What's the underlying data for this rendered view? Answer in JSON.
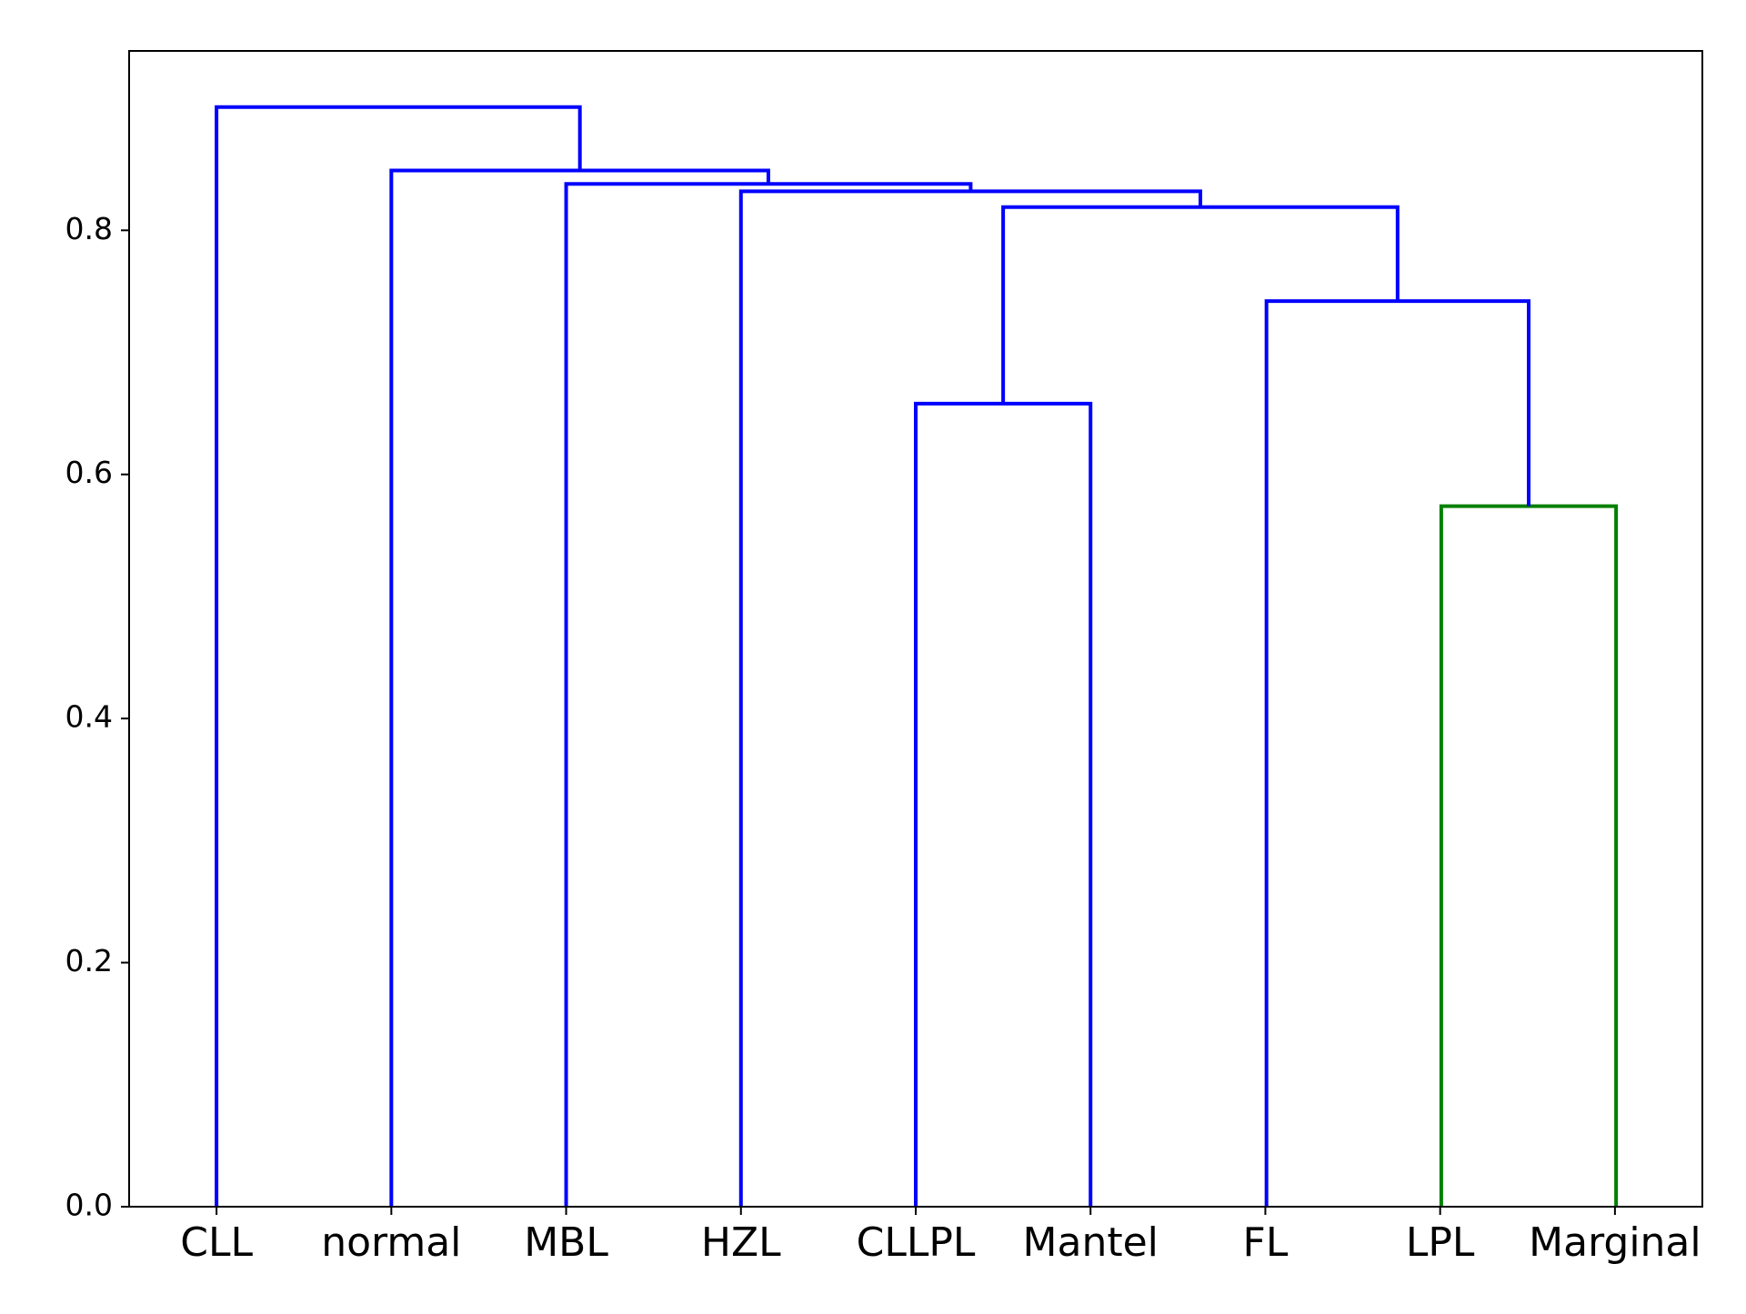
{
  "chart_data": {
    "type": "dendrogram",
    "title": "",
    "xlabel": "",
    "ylabel": "",
    "ylim": [
      0,
      0.947
    ],
    "y_ticks": [
      0.0,
      0.2,
      0.4,
      0.6,
      0.8
    ],
    "y_tick_labels": [
      "0.0",
      "0.2",
      "0.4",
      "0.6",
      "0.8"
    ],
    "leaves": [
      "CLL",
      "normal",
      "MBL",
      "HZL",
      "CLLPL",
      "Mantel",
      "FL",
      "LPL",
      "Marginal"
    ],
    "links": [
      {
        "left": [
          1278,
          0
        ],
        "right": [
          1433,
          0
        ],
        "height": 0.574,
        "color": "#008000"
      },
      {
        "left": [
          812,
          0
        ],
        "right": [
          967,
          0
        ],
        "height": 0.658,
        "color": "#0000ff"
      },
      {
        "left": [
          1123,
          0
        ],
        "right": [
          1355.5,
          0.574
        ],
        "height": 0.742,
        "color": "#0000ff"
      },
      {
        "left": [
          889.5,
          0.658
        ],
        "right": [
          1239.25,
          0.742
        ],
        "height": 0.819,
        "color": "#0000ff"
      },
      {
        "left": [
          657,
          0
        ],
        "right": [
          1064.4,
          0.819
        ],
        "height": 0.832,
        "color": "#0000ff"
      },
      {
        "left": [
          502,
          0
        ],
        "right": [
          860.7,
          0.832
        ],
        "height": 0.838,
        "color": "#0000ff"
      },
      {
        "left": [
          347,
          0
        ],
        "right": [
          681.3,
          0.838
        ],
        "height": 0.849,
        "color": "#0000ff"
      },
      {
        "left": [
          192,
          0
        ],
        "right": [
          514.2,
          0.849
        ],
        "height": 0.901,
        "color": "#0000ff"
      }
    ],
    "colors": {
      "above_threshold": "#0000ff",
      "cluster_1": "#008000",
      "axes": "#000000"
    }
  }
}
